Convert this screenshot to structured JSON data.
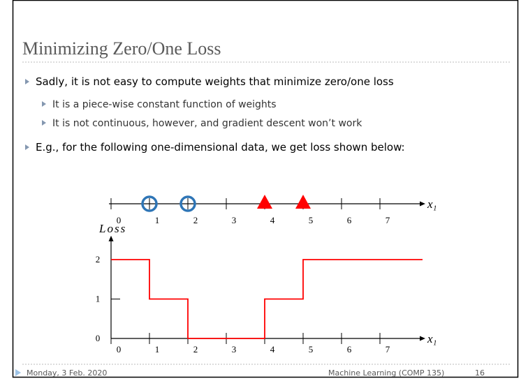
{
  "title": "Minimizing Zero/One Loss",
  "bullets": [
    {
      "text": "Sadly, it is not easy to compute weights that minimize zero/one loss",
      "level": 1
    },
    {
      "text": "It is a piece-wise constant function of weights",
      "level": 2
    },
    {
      "text": "It is not continuous, however, and gradient descent won’t work",
      "level": 2
    },
    {
      "text": "E.g., for the following one-dimensional data, we get loss shown below:",
      "level": 1
    }
  ],
  "chart_data": [
    {
      "type": "numberline",
      "xlabel": "x₁",
      "xlim": [
        0,
        8
      ],
      "xticks": [
        0,
        1,
        2,
        3,
        4,
        5,
        6,
        7
      ],
      "series": [
        {
          "marker": "circle",
          "color": "#2e75b6",
          "values": [
            1,
            2
          ]
        },
        {
          "marker": "triangle",
          "color": "#ff0000",
          "values": [
            4,
            5
          ]
        }
      ]
    },
    {
      "type": "step",
      "ylabel": "Loss",
      "xlabel": "x₁",
      "xlim": [
        0,
        8
      ],
      "xticks": [
        0,
        1,
        2,
        3,
        4,
        5,
        6,
        7
      ],
      "ylim": [
        0,
        2.5
      ],
      "yticks": [
        0,
        1,
        2
      ],
      "color": "#ff0000",
      "x": [
        0,
        1,
        2,
        4,
        5
      ],
      "values": [
        2,
        1,
        0,
        1,
        2
      ]
    }
  ],
  "footer": {
    "date": "Monday, 3 Feb. 2020",
    "course": "Machine Learning (COMP 135)",
    "page": "16"
  }
}
